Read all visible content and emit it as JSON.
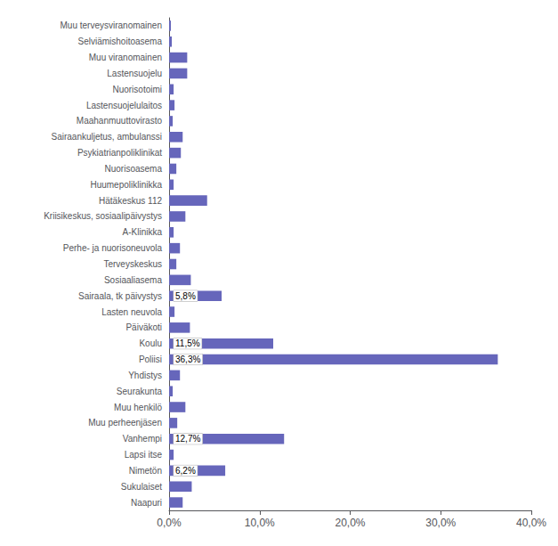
{
  "chart_data": {
    "type": "bar",
    "orientation": "horizontal",
    "categories": [
      "Muu terveysviranomainen",
      "Selviämishoitoasema",
      "Muu viranomainen",
      "Lastensuojelu",
      "Nuorisotoimi",
      "Lastensuojelulaitos",
      "Maahanmuuttovirasto",
      "Sairaankuljetus, ambulanssi",
      "Psykiatrianpoliklinikat",
      "Nuorisoasema",
      "Huumepoliklinikka",
      "Hätäkeskus 112",
      "Kriisikeskus, sosiaalipäivystys",
      "A-Klinikka",
      "Perhe- ja nuorisoneuvola",
      "Terveyskeskus",
      "Sosiaaliasema",
      "Sairaala, tk päivystys",
      "Lasten neuvola",
      "Päiväkoti",
      "Koulu",
      "Poliisi",
      "Yhdistys",
      "Seurakunta",
      "Muu henkilö",
      "Muu perheenjäsen",
      "Vanhempi",
      "Lapsi itse",
      "Nimetön",
      "Sukulaiset",
      "Naapuri"
    ],
    "values": [
      0.2,
      0.3,
      2.0,
      2.0,
      0.5,
      0.6,
      0.4,
      1.5,
      1.3,
      0.8,
      0.5,
      4.2,
      1.8,
      0.5,
      1.2,
      0.8,
      2.4,
      5.8,
      0.6,
      2.3,
      11.5,
      36.3,
      1.2,
      0.4,
      1.8,
      0.9,
      12.7,
      0.5,
      6.2,
      2.5,
      1.5
    ],
    "value_labels": [
      null,
      null,
      null,
      null,
      null,
      null,
      null,
      null,
      null,
      null,
      null,
      null,
      null,
      null,
      null,
      null,
      null,
      "5,8%",
      null,
      null,
      "11,5%",
      "36,3%",
      null,
      null,
      null,
      null,
      "12,7%",
      null,
      "6,2%",
      null,
      null
    ],
    "color": "#6666bb",
    "xlim": [
      0,
      40
    ],
    "xticks": [
      {
        "value": 0,
        "label": "0,0%"
      },
      {
        "value": 10,
        "label": "10,0%"
      },
      {
        "value": 20,
        "label": "20,0%"
      },
      {
        "value": 30,
        "label": "30,0%"
      },
      {
        "value": 40,
        "label": "40,0%"
      }
    ],
    "grid": false
  }
}
